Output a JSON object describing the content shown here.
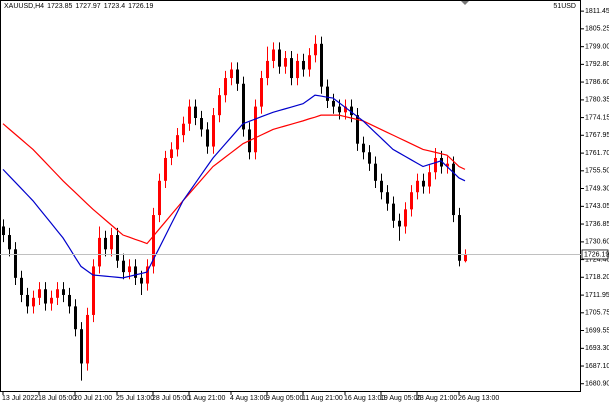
{
  "chart_data": {
    "type": "candlestick",
    "symbol": "XAUUSD,H4",
    "corner_label": "51USD",
    "up_color": "#ff0000",
    "down_color": "#000000",
    "categories": [
      "13 Jul 2022",
      null,
      null,
      null,
      null,
      null,
      "18 Jul 05:00",
      null,
      null,
      null,
      null,
      null,
      "20 Jul 21:00",
      null,
      null,
      null,
      null,
      null,
      null,
      "25 Jul 13:00",
      null,
      null,
      null,
      null,
      null,
      "28 Jul 05:00",
      null,
      null,
      null,
      null,
      null,
      "1 Aug 21:00",
      null,
      null,
      null,
      null,
      null,
      null,
      "4 Aug 13:00",
      null,
      null,
      null,
      null,
      null,
      "9 Aug 05:00",
      null,
      null,
      null,
      null,
      null,
      "11 Aug 21:00",
      null,
      null,
      null,
      null,
      null,
      null,
      "16 Aug 13:00",
      null,
      null,
      null,
      null,
      null,
      "19 Aug 05:00",
      null,
      null,
      null,
      null,
      null,
      "23 Aug 21:00",
      null,
      null,
      null,
      null,
      null,
      null,
      "26 Aug 13:00",
      null
    ],
    "open": [
      1736,
      1733,
      1728,
      1718,
      1712,
      1708,
      1711,
      1714,
      1709,
      1711,
      1714,
      1712,
      1708,
      1700,
      1688,
      1705,
      1722,
      1732,
      1728,
      1733,
      1724,
      1720,
      1722,
      1718,
      1716,
      1722,
      1740,
      1752,
      1760,
      1763,
      1768,
      1772,
      1778,
      1774,
      1770,
      1764,
      1775,
      1782,
      1788,
      1791,
      1786,
      1770,
      1762,
      1778,
      1788,
      1794,
      1798,
      1792,
      1795,
      1788,
      1794,
      1791,
      1796,
      1800,
      1785,
      1780,
      1778,
      1776,
      1778,
      1775,
      1765,
      1762,
      1758,
      1752,
      1748,
      1744,
      1738,
      1736,
      1742,
      1748,
      1752,
      1750,
      1755,
      1760,
      1757,
      1758,
      1740,
      1723.85
    ],
    "high": [
      1738.5,
      1735.5,
      1730.5,
      1720.5,
      1714.5,
      1713.5,
      1716.5,
      1716.5,
      1713.5,
      1716.5,
      1716.5,
      1714.5,
      1710.5,
      1702.5,
      1707.5,
      1724.5,
      1736,
      1734.5,
      1735.5,
      1735.5,
      1726.5,
      1724.5,
      1724.5,
      1720.5,
      1724.5,
      1742.5,
      1754.5,
      1762.5,
      1765.5,
      1770.5,
      1774.5,
      1780.5,
      1780.5,
      1776.5,
      1772.5,
      1777.5,
      1784.5,
      1790.5,
      1793.5,
      1793.5,
      1788.5,
      1772.5,
      1780.5,
      1790.5,
      1799,
      1800.5,
      1800.5,
      1797.5,
      1797.5,
      1796.5,
      1796.5,
      1798.5,
      1803,
      1802.5,
      1787.5,
      1782.5,
      1780.5,
      1780.5,
      1780.5,
      1777.5,
      1767.5,
      1764.5,
      1760.5,
      1754.5,
      1750.5,
      1746.5,
      1740.5,
      1744.5,
      1750.5,
      1754.5,
      1754.5,
      1757.5,
      1763.5,
      1762.5,
      1760.5,
      1760.5,
      1742.5,
      1727.97
    ],
    "low": [
      1730.5,
      1725.5,
      1715.5,
      1709.5,
      1705.5,
      1705.5,
      1708.5,
      1706.5,
      1706.5,
      1708.5,
      1709.5,
      1705.5,
      1697.5,
      1682,
      1685.5,
      1702.5,
      1719.5,
      1725.5,
      1725.5,
      1721.5,
      1717.5,
      1717.5,
      1715.5,
      1712,
      1713.5,
      1719.5,
      1737.5,
      1749.5,
      1757.5,
      1760.5,
      1765.5,
      1769.5,
      1771.5,
      1767.5,
      1761.5,
      1761.5,
      1772.5,
      1779.5,
      1785.5,
      1783.5,
      1767.5,
      1759.5,
      1759.5,
      1775.5,
      1785.5,
      1791.5,
      1789.5,
      1789.5,
      1785.5,
      1785.5,
      1788.5,
      1788.5,
      1793.5,
      1782.5,
      1777.5,
      1775.5,
      1773.5,
      1773.5,
      1772.5,
      1762.5,
      1759.5,
      1755.5,
      1749.5,
      1745.5,
      1741.5,
      1735.5,
      1731,
      1733.5,
      1739.5,
      1745.5,
      1747.5,
      1747.5,
      1752.5,
      1754.5,
      1754.5,
      1737.5,
      1722,
      1723.4
    ],
    "close": [
      1733,
      1728,
      1718,
      1712,
      1708,
      1711,
      1714,
      1709,
      1711,
      1714,
      1712,
      1708,
      1700,
      1688,
      1705,
      1722,
      1732,
      1728,
      1733,
      1724,
      1720,
      1722,
      1718,
      1716,
      1722,
      1740,
      1752,
      1760,
      1763,
      1768,
      1772,
      1778,
      1774,
      1770,
      1764,
      1775,
      1782,
      1788,
      1791,
      1786,
      1770,
      1762,
      1778,
      1788,
      1794,
      1798,
      1792,
      1795,
      1788,
      1794,
      1791,
      1796,
      1800,
      1785,
      1780,
      1778,
      1776,
      1778,
      1775,
      1765,
      1762,
      1758,
      1752,
      1748,
      1744,
      1738,
      1736,
      1742,
      1748,
      1752,
      1750,
      1755,
      1760,
      1757,
      1758,
      1740,
      1724,
      1726.19
    ],
    "moving_averages": [
      {
        "color": "#ff0000",
        "values": [
          1772,
          1770.2,
          1768.4,
          1766.6,
          1764.8,
          1763,
          1760.8,
          1758.6,
          1756.4,
          1754.2,
          1752,
          1750,
          1748,
          1746,
          1744,
          1742,
          1740.2,
          1738.4,
          1736.6,
          1734.8,
          1733,
          1732.3,
          1731.5,
          1730.8,
          1730,
          1732.5,
          1735,
          1737.5,
          1740,
          1742.5,
          1745,
          1747.4,
          1749.8,
          1752.2,
          1754.6,
          1757,
          1758.6,
          1760.2,
          1761.8,
          1763.4,
          1765,
          1766,
          1767,
          1768,
          1769,
          1770,
          1770.6,
          1771.2,
          1771.8,
          1772.4,
          1773,
          1773.7,
          1774.3,
          1775,
          1775,
          1775,
          1775,
          1774.5,
          1774,
          1773.5,
          1773,
          1772,
          1771,
          1770,
          1769,
          1768,
          1767,
          1766,
          1765,
          1764,
          1763,
          1762.5,
          1762,
          1761.5,
          1761,
          1759,
          1757,
          1756
        ]
      },
      {
        "color": "#0000cc",
        "values": [
          1756,
          1753.8,
          1751.6,
          1749.4,
          1747.2,
          1745,
          1742.4,
          1739.8,
          1737.2,
          1734.6,
          1732,
          1728.7,
          1725.3,
          1722,
          1720.5,
          1719,
          1718.8,
          1718.6,
          1718.4,
          1718.2,
          1718,
          1718.5,
          1719,
          1719.5,
          1720,
          1724.2,
          1728.3,
          1732.5,
          1736.7,
          1740.8,
          1745,
          1748,
          1751,
          1754,
          1757,
          1760,
          1762.4,
          1764.8,
          1767.2,
          1769.6,
          1772,
          1772.8,
          1773.6,
          1774.4,
          1775.2,
          1776,
          1776.6,
          1777.2,
          1777.8,
          1778.4,
          1779,
          1780.5,
          1782,
          1781.7,
          1781.3,
          1781,
          1779.4,
          1777.8,
          1776.2,
          1774.6,
          1773,
          1771,
          1769,
          1767,
          1765,
          1763,
          1761.8,
          1760.6,
          1759.4,
          1758.2,
          1757,
          1757.7,
          1758.3,
          1759,
          1757,
          1755,
          1753,
          1752
        ]
      }
    ],
    "ylim": [
      1678.0,
      1815.0
    ],
    "yticks": [
      {
        "value": 1811.45,
        "label": "1811.45"
      },
      {
        "value": 1805.25,
        "label": "1805.25"
      },
      {
        "value": 1799.0,
        "label": "1799.00"
      },
      {
        "value": 1792.8,
        "label": "1792.80"
      },
      {
        "value": 1786.6,
        "label": "1786.60"
      },
      {
        "value": 1780.35,
        "label": "1780.35"
      },
      {
        "value": 1774.15,
        "label": "1774.15"
      },
      {
        "value": 1767.95,
        "label": "1767.95"
      },
      {
        "value": 1761.7,
        "label": "1761.70"
      },
      {
        "value": 1755.5,
        "label": "1755.50"
      },
      {
        "value": 1749.3,
        "label": "1749.30"
      },
      {
        "value": 1743.05,
        "label": "1743.05"
      },
      {
        "value": 1736.85,
        "label": "1736.85"
      },
      {
        "value": 1730.6,
        "label": "1730.60"
      },
      {
        "value": 1724.4,
        "label": "1724.40"
      },
      {
        "value": 1718.2,
        "label": "1718.20"
      },
      {
        "value": 1711.95,
        "label": "1711.95"
      },
      {
        "value": 1705.75,
        "label": "1705.75"
      },
      {
        "value": 1699.55,
        "label": "1699.55"
      },
      {
        "value": 1693.3,
        "label": "1693.30"
      },
      {
        "value": 1687.1,
        "label": "1687.10"
      },
      {
        "value": 1680.9,
        "label": "1680.90"
      }
    ]
  }
}
